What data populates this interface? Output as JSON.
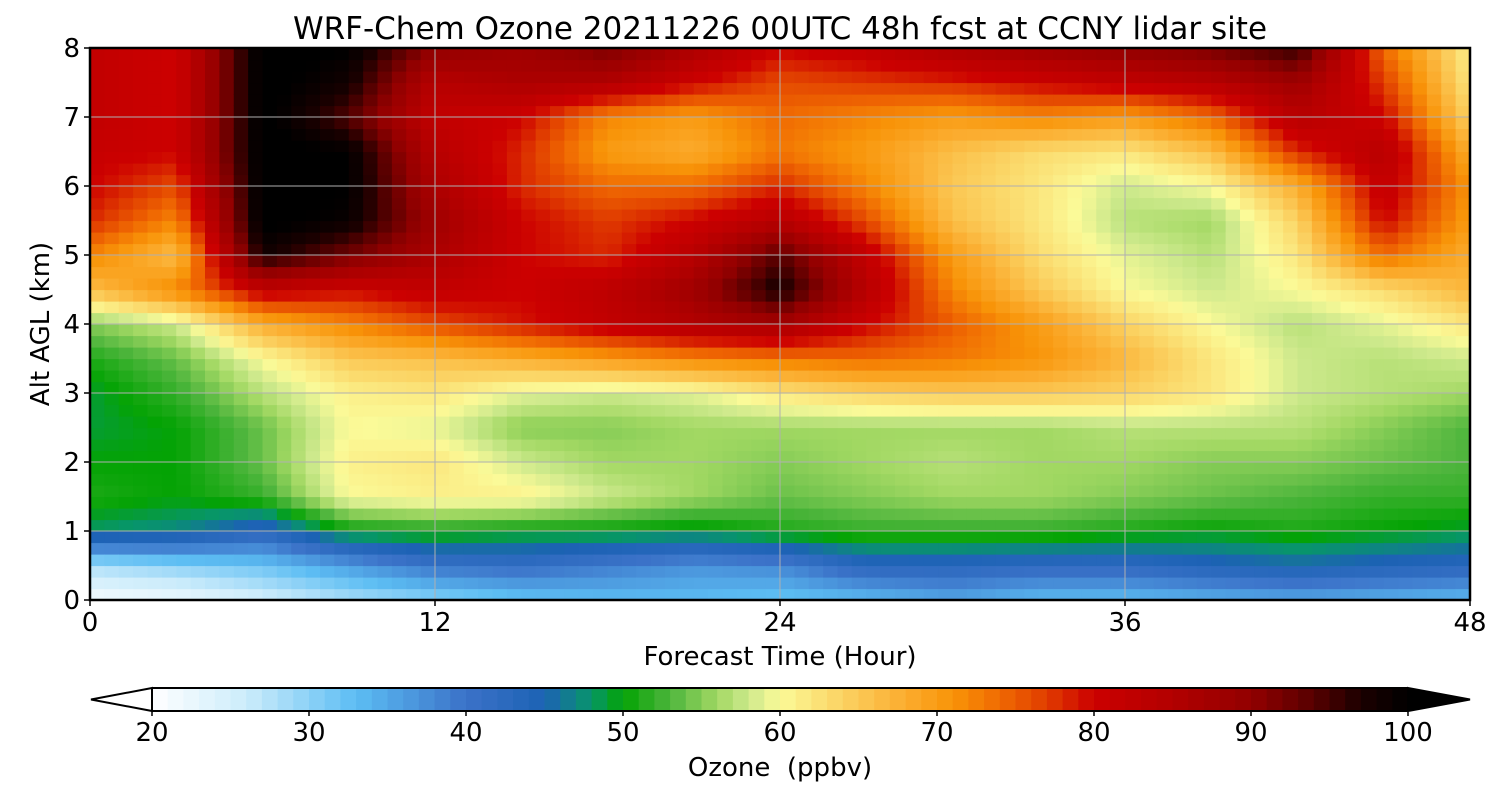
{
  "chart_data": {
    "type": "heatmap",
    "title": "WRF-Chem Ozone  20211226 00UTC 48h fcst at CCNY lidar site",
    "xlabel": "Forecast Time (Hour)",
    "ylabel": "Alt AGL (km)",
    "xlim": [
      0,
      48
    ],
    "ylim": [
      0,
      8
    ],
    "xticks": [
      "0",
      "12",
      "24",
      "36",
      "48"
    ],
    "yticks": [
      "0",
      "1",
      "2",
      "3",
      "4",
      "5",
      "6",
      "7",
      "8"
    ],
    "grid": true,
    "x": [
      0,
      3,
      6,
      9,
      12,
      15,
      18,
      21,
      24,
      27,
      30,
      33,
      36,
      39,
      42,
      45,
      48
    ],
    "y": [
      0,
      0.5,
      1,
      1.5,
      2,
      2.5,
      3,
      3.5,
      4,
      4.5,
      5,
      5.5,
      6,
      6.5,
      7,
      7.5,
      8
    ],
    "z": [
      [
        21,
        22,
        25,
        28,
        30,
        32,
        33,
        33,
        32,
        33,
        35,
        33,
        33,
        34,
        35,
        34,
        33
      ],
      [
        28,
        30,
        32,
        36,
        40,
        41,
        39,
        37,
        38,
        43,
        43,
        42,
        42,
        44,
        45,
        44,
        43
      ],
      [
        48,
        47,
        43,
        50,
        51,
        50,
        50,
        49,
        51,
        52,
        52,
        52,
        51,
        50,
        51,
        50,
        49
      ],
      [
        51,
        50,
        52,
        60,
        61,
        61,
        58,
        56,
        54,
        55,
        56,
        56,
        55,
        54,
        53,
        52,
        52
      ],
      [
        50,
        50,
        54,
        61,
        62,
        58,
        56,
        56,
        55,
        56,
        57,
        56,
        56,
        55,
        55,
        54,
        53
      ],
      [
        49,
        50,
        54,
        60,
        59,
        55,
        55,
        56,
        56,
        56,
        56,
        56,
        57,
        57,
        57,
        55,
        53
      ],
      [
        49,
        52,
        57,
        61,
        62,
        59,
        58,
        59,
        62,
        64,
        65,
        65,
        64,
        62,
        58,
        57,
        56
      ],
      [
        51,
        54,
        60,
        65,
        66,
        68,
        70,
        72,
        73,
        74,
        73,
        71,
        67,
        62,
        58,
        57,
        58
      ],
      [
        55,
        58,
        68,
        72,
        76,
        79,
        82,
        85,
        87,
        80,
        75,
        70,
        64,
        60,
        57,
        59,
        62
      ],
      [
        66,
        72,
        82,
        80,
        82,
        80,
        83,
        88,
        98,
        84,
        72,
        65,
        60,
        58,
        60,
        63,
        67
      ],
      [
        72,
        66,
        98,
        92,
        86,
        80,
        78,
        84,
        94,
        82,
        70,
        63,
        59,
        57,
        62,
        74,
        68
      ],
      [
        78,
        72,
        101,
        99,
        88,
        80,
        77,
        80,
        84,
        76,
        66,
        62,
        57,
        56,
        64,
        80,
        70
      ],
      [
        80,
        76,
        101,
        100,
        86,
        78,
        74,
        74,
        78,
        72,
        65,
        62,
        58,
        60,
        68,
        82,
        71
      ],
      [
        81,
        80,
        101,
        100,
        84,
        78,
        70,
        68,
        73,
        70,
        66,
        63,
        62,
        66,
        78,
        84,
        68
      ],
      [
        82,
        80,
        101,
        94,
        82,
        80,
        72,
        70,
        74,
        72,
        70,
        72,
        70,
        74,
        84,
        80,
        64
      ],
      [
        82,
        80,
        101,
        98,
        84,
        86,
        85,
        80,
        76,
        77,
        78,
        80,
        82,
        84,
        88,
        77,
        62
      ],
      [
        82,
        80,
        101,
        100,
        90,
        88,
        92,
        86,
        80,
        82,
        86,
        88,
        90,
        92,
        96,
        74,
        61
      ]
    ],
    "colorbar": {
      "label": "Ozone  (ppbv)",
      "min": 20,
      "max": 100,
      "ticks": [
        "20",
        "30",
        "40",
        "50",
        "60",
        "70",
        "80",
        "90",
        "100"
      ],
      "extend": "both",
      "min_extend_color": "#ffffff",
      "max_extend_color": "#000000"
    },
    "colormap": [
      [
        20,
        "#ffffff"
      ],
      [
        26,
        "#ccecfb"
      ],
      [
        33,
        "#5cbdf3"
      ],
      [
        40,
        "#3b72c8"
      ],
      [
        45,
        "#1c62b4"
      ],
      [
        48,
        "#07956a"
      ],
      [
        50,
        "#04a304"
      ],
      [
        53,
        "#4db53c"
      ],
      [
        56,
        "#a2d863"
      ],
      [
        58,
        "#cde98c"
      ],
      [
        60,
        "#fbfa98"
      ],
      [
        64,
        "#fbd262"
      ],
      [
        68,
        "#fbac2e"
      ],
      [
        71,
        "#f89408"
      ],
      [
        74,
        "#f06a02"
      ],
      [
        77,
        "#e03c00"
      ],
      [
        80,
        "#cc0000"
      ],
      [
        85,
        "#b20000"
      ],
      [
        90,
        "#920000"
      ],
      [
        94,
        "#560000"
      ],
      [
        97,
        "#1b0000"
      ],
      [
        100,
        "#000000"
      ]
    ]
  }
}
